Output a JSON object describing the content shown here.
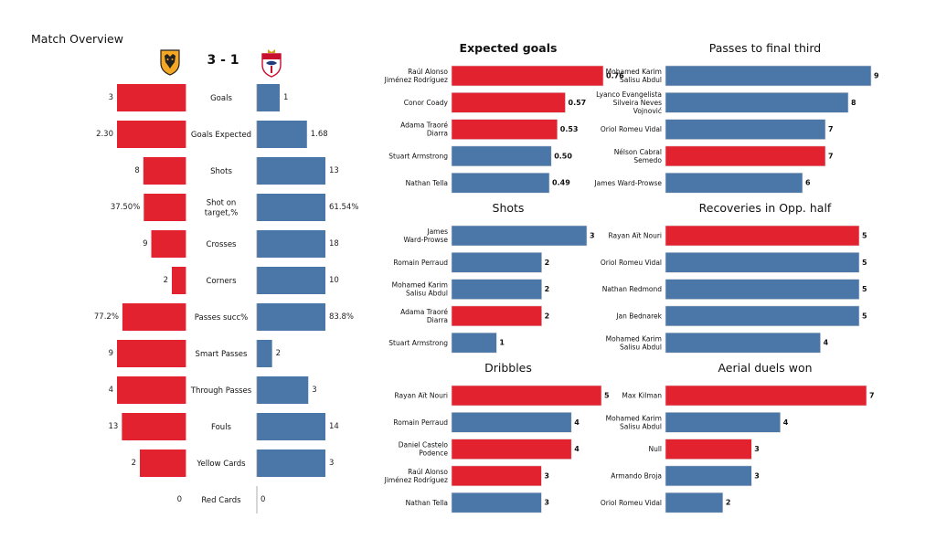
{
  "page_title": "Match Overview",
  "score": "3 - 1",
  "colors": {
    "home": "#e32230",
    "away": "#4a76a8"
  },
  "crests": {
    "home": "wolves-crest-icon",
    "away": "southampton-crest-icon"
  },
  "chart_data": [
    {
      "type": "bar",
      "orientation": "diverging-horizontal",
      "title": "",
      "categories": [
        "Goals",
        "Goals Expected",
        "Shots",
        "Shot on target,%",
        "Crosses",
        "Corners",
        "Passes succ%",
        "Smart Passes",
        "Through Passes",
        "Fouls",
        "Yellow Cards",
        "Red Cards"
      ],
      "series": [
        {
          "team": "home",
          "values": [
            3,
            2.3,
            8,
            37.5,
            9,
            2,
            77.2,
            9,
            4,
            13,
            2,
            0
          ],
          "labels": [
            "3",
            "2.30",
            "8",
            "37.50%",
            "9",
            "2",
            "77.2%",
            "9",
            "4",
            "13",
            "2",
            "0"
          ]
        },
        {
          "team": "away",
          "values": [
            1,
            1.68,
            13,
            61.54,
            18,
            10,
            83.8,
            2,
            3,
            14,
            3,
            0
          ],
          "labels": [
            "1",
            "1.68",
            "13",
            "61.54%",
            "18",
            "10",
            "83.8%",
            "2",
            "3",
            "14",
            "3",
            "0"
          ]
        }
      ]
    },
    {
      "type": "bar",
      "orientation": "horizontal",
      "title": "Expected goals",
      "title_bold": true,
      "players": [
        "Raúl Alonso\nJiménez Rodríguez",
        "Conor  Coady",
        "Adama Traoré\nDiarra",
        "Stuart Armstrong",
        "Nathan Tella"
      ],
      "values": [
        0.76,
        0.57,
        0.53,
        0.5,
        0.49
      ],
      "labels": [
        "0.76",
        "0.57",
        "0.53",
        "0.50",
        "0.49"
      ],
      "teams": [
        "home",
        "home",
        "home",
        "away",
        "away"
      ]
    },
    {
      "type": "bar",
      "orientation": "horizontal",
      "title": "Passes to final third",
      "players": [
        "Mohamed Karim\nSalisu Abdul",
        "Lyanco Evangelista\nSilveira Neves\nVojnović",
        "Oriol Romeu Vidal",
        "Nélson Cabral\nSemedo",
        "James  Ward-Prowse"
      ],
      "values": [
        9,
        8,
        7,
        7,
        6
      ],
      "labels": [
        "9",
        "8",
        "7",
        "7",
        "6"
      ],
      "teams": [
        "away",
        "away",
        "away",
        "home",
        "away"
      ]
    },
    {
      "type": "bar",
      "orientation": "horizontal",
      "title": "Shots",
      "players": [
        "James\nWard-Prowse",
        "Romain Perraud",
        "Mohamed Karim\nSalisu Abdul",
        "Adama Traoré\nDiarra",
        "Stuart Armstrong"
      ],
      "values": [
        3,
        2,
        2,
        2,
        1
      ],
      "labels": [
        "3",
        "2",
        "2",
        "2",
        "1"
      ],
      "teams": [
        "away",
        "away",
        "away",
        "home",
        "away"
      ]
    },
    {
      "type": "bar",
      "orientation": "horizontal",
      "title": "Recoveries in Opp. half",
      "players": [
        "Rayan Aït Nouri",
        "Oriol Romeu Vidal",
        "Nathan Redmond",
        "Jan Bednarek",
        "Mohamed Karim\nSalisu Abdul"
      ],
      "values": [
        5,
        5,
        5,
        5,
        4
      ],
      "labels": [
        "5",
        "5",
        "5",
        "5",
        "4"
      ],
      "teams": [
        "home",
        "away",
        "away",
        "away",
        "away"
      ]
    },
    {
      "type": "bar",
      "orientation": "horizontal",
      "title": "Dribbles",
      "players": [
        "Rayan Aït Nouri",
        "Romain Perraud",
        "Daniel Castelo\nPodence",
        "Raúl Alonso\nJiménez Rodríguez",
        "Nathan Tella"
      ],
      "values": [
        5,
        4,
        4,
        3,
        3
      ],
      "labels": [
        "5",
        "4",
        "4",
        "3",
        "3"
      ],
      "teams": [
        "home",
        "away",
        "home",
        "home",
        "away"
      ]
    },
    {
      "type": "bar",
      "orientation": "horizontal",
      "title": "Aerial duels won",
      "players": [
        "Max Kilman",
        "Mohamed Karim\nSalisu Abdul",
        "Null",
        "Armando Broja",
        "Oriol Romeu Vidal"
      ],
      "values": [
        7,
        4,
        3,
        3,
        2
      ],
      "labels": [
        "7",
        "4",
        "3",
        "3",
        "2"
      ],
      "teams": [
        "home",
        "away",
        "home",
        "away",
        "away"
      ]
    }
  ]
}
